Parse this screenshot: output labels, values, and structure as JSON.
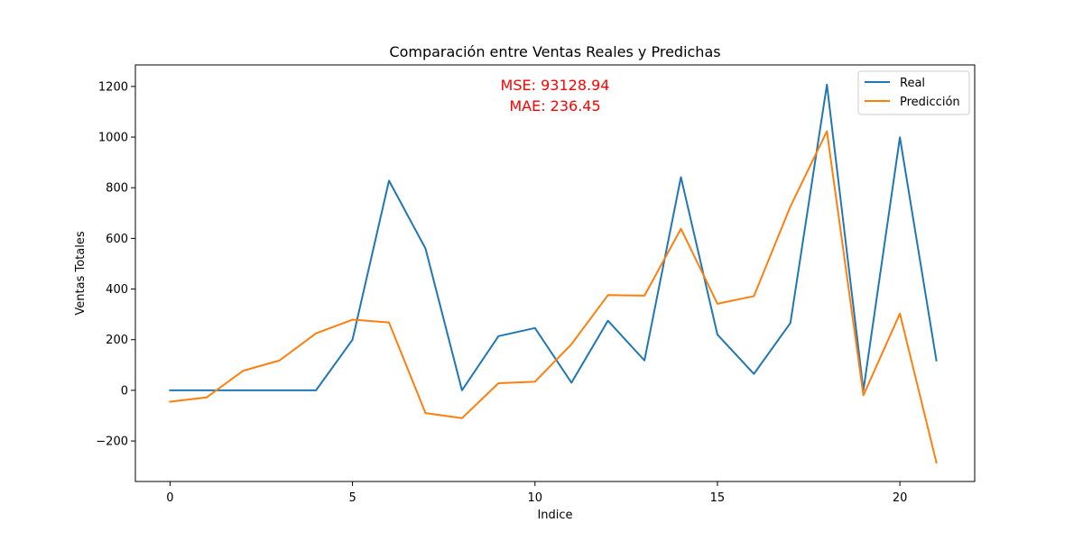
{
  "chart_data": {
    "type": "line",
    "title": "Comparación entre Ventas Reales y Predichas",
    "xlabel": "Indice",
    "ylabel": "Ventas Totales",
    "xlim": [
      -0.95,
      22.05
    ],
    "ylim": [
      -360,
      1285
    ],
    "x": [
      0,
      1,
      2,
      3,
      4,
      5,
      6,
      7,
      8,
      9,
      10,
      11,
      12,
      13,
      14,
      15,
      16,
      17,
      18,
      19,
      20,
      21
    ],
    "xticks": [
      0,
      5,
      10,
      15,
      20
    ],
    "yticks": [
      -200,
      0,
      200,
      400,
      600,
      800,
      1000,
      1200
    ],
    "xtick_labels": [
      "0",
      "5",
      "10",
      "15",
      "20"
    ],
    "ytick_labels": [
      "−200",
      "0",
      "200",
      "400",
      "600",
      "800",
      "1000",
      "1200"
    ],
    "grid": false,
    "legend_position": "top-right",
    "series": [
      {
        "name": "Real",
        "color": "#1f77b4",
        "values": [
          0,
          0,
          0,
          0,
          0,
          200,
          828,
          560,
          0,
          214,
          246,
          30,
          275,
          118,
          842,
          220,
          65,
          266,
          1207,
          0,
          999,
          118
        ]
      },
      {
        "name": "Predicción",
        "color": "#ff7f0e",
        "values": [
          -45,
          -28,
          77,
          118,
          225,
          279,
          268,
          -90,
          -110,
          28,
          34,
          182,
          376,
          374,
          638,
          342,
          372,
          726,
          1023,
          -20,
          303,
          -285
        ]
      }
    ],
    "annotations": [
      {
        "text": "MSE: 93128.94",
        "color": "#ff0000"
      },
      {
        "text": "MAE: 236.45",
        "color": "#ff0000"
      }
    ]
  }
}
